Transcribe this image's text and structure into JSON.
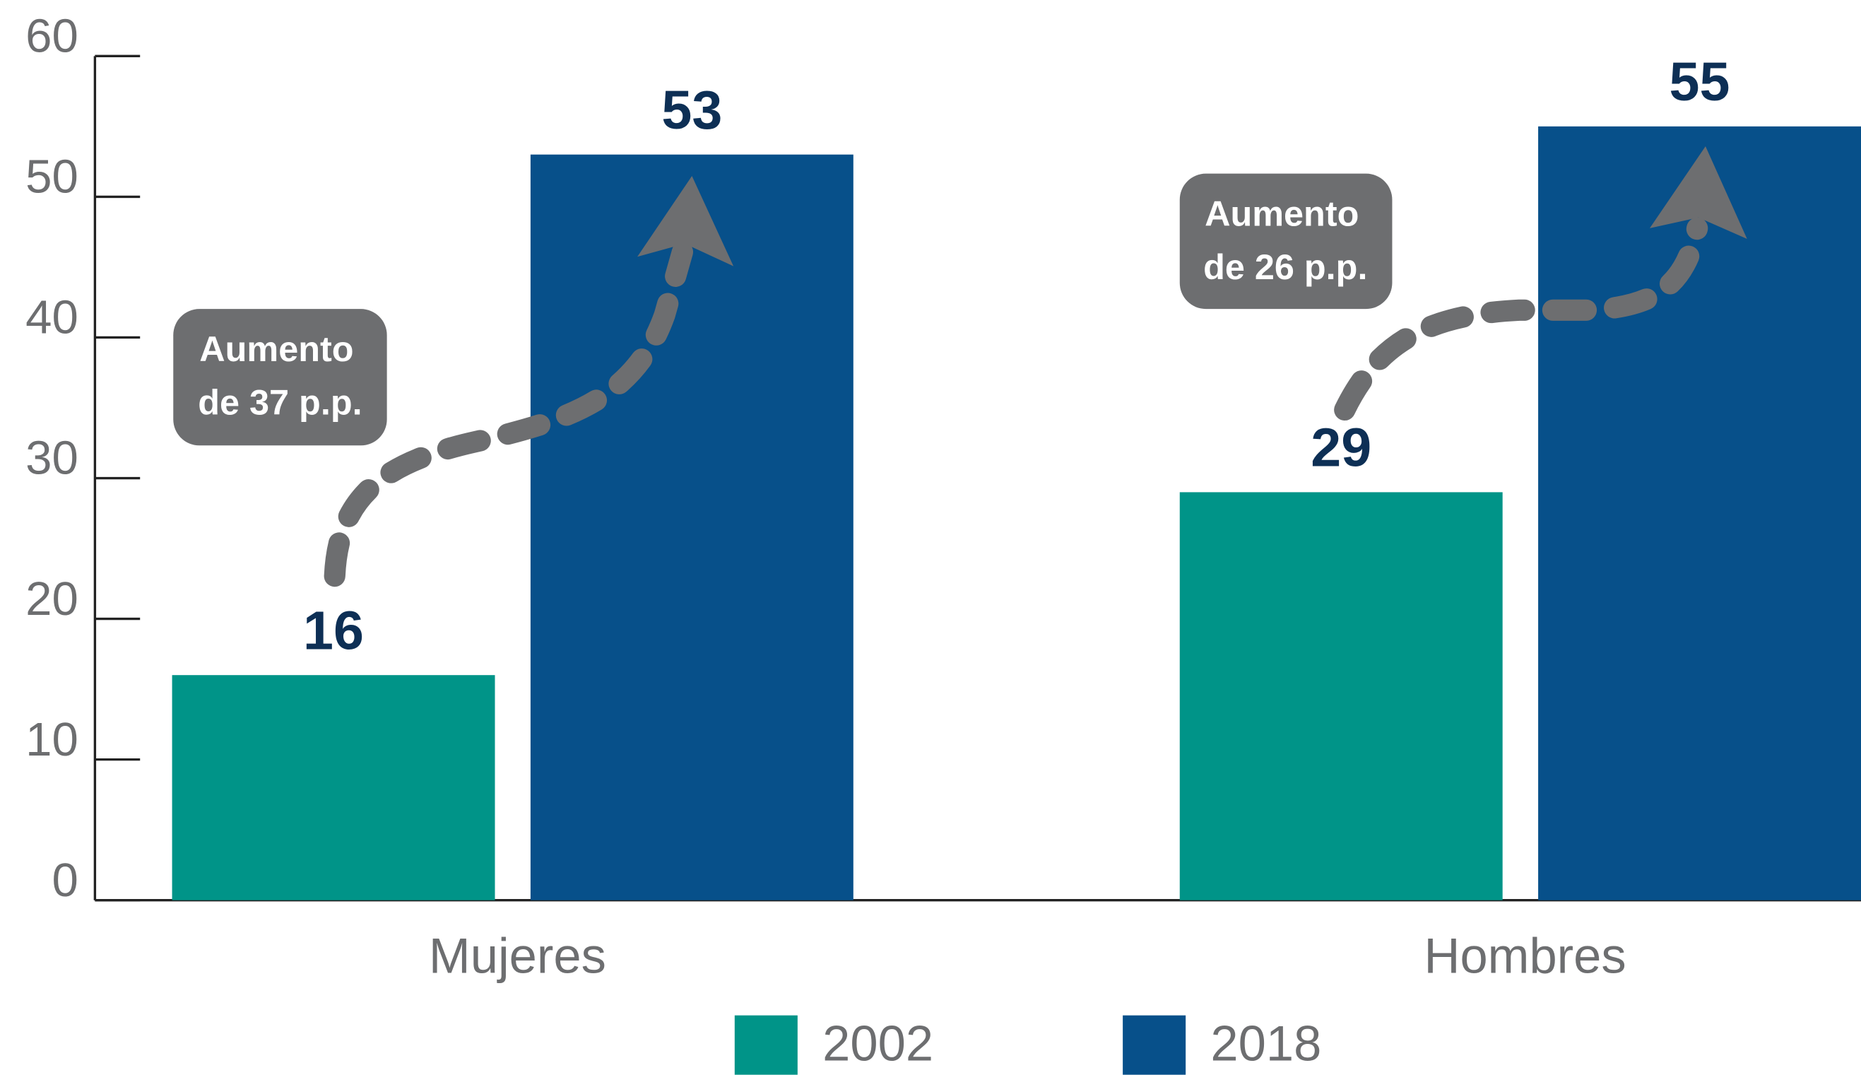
{
  "chart_data": {
    "type": "bar",
    "categories": [
      "Mujeres",
      "Hombres"
    ],
    "series": [
      {
        "name": "2002",
        "color": "#009488",
        "values": [
          16,
          29
        ]
      },
      {
        "name": "2018",
        "color": "#07508a",
        "values": [
          53,
          55
        ]
      }
    ],
    "ylim": [
      0,
      60
    ],
    "yticks": [
      0,
      10,
      20,
      30,
      40,
      50,
      60
    ],
    "annotations": [
      [
        "Aumento",
        "de 37 p.p."
      ],
      [
        "Aumento",
        "de 26 p.p."
      ]
    ]
  }
}
